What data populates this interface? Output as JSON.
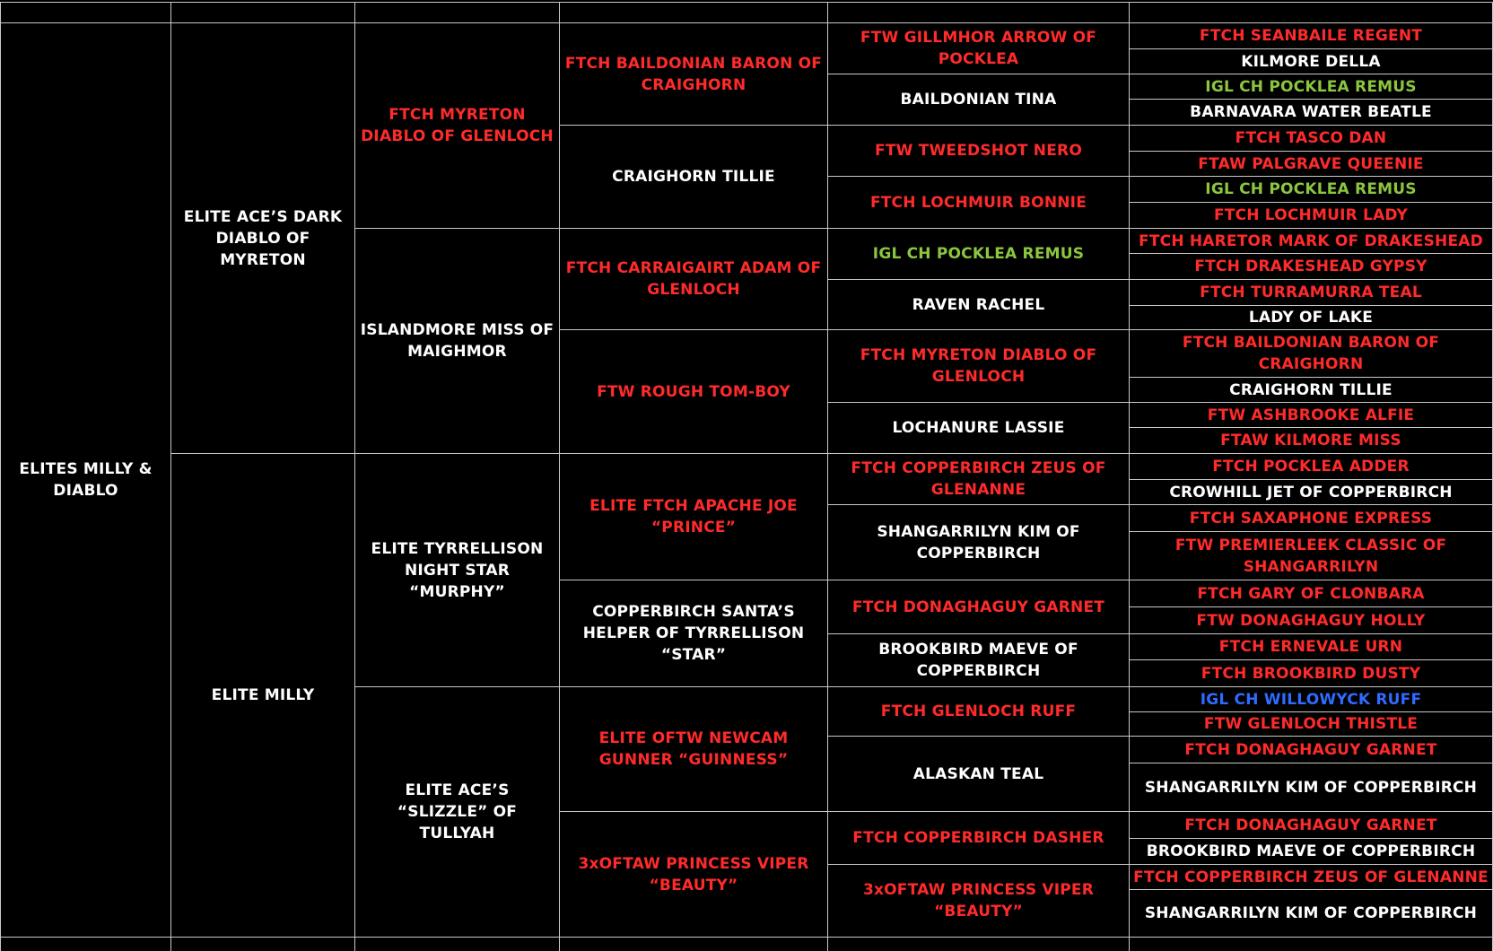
{
  "columns": [
    [
      {
        "text": "ELITES MILLY & DIABLO",
        "color": "#ffffff"
      }
    ],
    [
      {
        "text": "ELITE ACE’S DARK DIABLO OF MYRETON",
        "color": "#ffffff"
      },
      {
        "text": "ELITE MILLY",
        "color": "#ffffff"
      }
    ],
    [
      {
        "text": "FTCH MYRETON DIABLO OF GLENLOCH",
        "color": "#ff2b2b"
      },
      {
        "text": "ISLANDMORE MISS OF MAIGHMOR",
        "color": "#ffffff"
      },
      {
        "text": "ELITE TYRRELLISON NIGHT STAR “MURPHY”",
        "color": "#ffffff"
      },
      {
        "text": "ELITE ACE’S “SLIZZLE” OF TULLYAH",
        "color": "#ffffff"
      }
    ],
    [
      {
        "text": "FTCH BAILDONIAN BARON OF CRAIGHORN",
        "color": "#ff2b2b"
      },
      {
        "text": "CRAIGHORN TILLIE",
        "color": "#ffffff"
      },
      {
        "text": "FTCH CARRAIGAIRT ADAM OF GLENLOCH",
        "color": "#ff2b2b"
      },
      {
        "text": "FTW ROUGH TOM-BOY",
        "color": "#ff2b2b"
      },
      {
        "text": "ELITE FTCH APACHE JOE “PRINCE”",
        "color": "#ff2b2b"
      },
      {
        "text": "COPPERBIRCH SANTA’S HELPER OF TYRRELLISON “STAR”",
        "color": "#ffffff"
      },
      {
        "text": "ELITE OFTW NEWCAM GUNNER “GUINNESS”",
        "color": "#ff2b2b"
      },
      {
        "text": "3xOFTAW PRINCESS VIPER “BEAUTY”",
        "color": "#ff2b2b"
      }
    ],
    [
      {
        "text": "FTW GILLMHOR ARROW OF POCKLEA",
        "color": "#ff2b2b"
      },
      {
        "text": "BAILDONIAN TINA",
        "color": "#ffffff"
      },
      {
        "text": "FTW TWEEDSHOT NERO",
        "color": "#ff2b2b"
      },
      {
        "text": "FTCH LOCHMUIR BONNIE",
        "color": "#ff2b2b"
      },
      {
        "text": "IGL CH POCKLEA REMUS",
        "color": "#8cc63f"
      },
      {
        "text": "RAVEN RACHEL",
        "color": "#ffffff"
      },
      {
        "text": "FTCH MYRETON DIABLO OF GLENLOCH",
        "color": "#ff2b2b"
      },
      {
        "text": "LOCHANURE LASSIE",
        "color": "#ffffff"
      },
      {
        "text": "FTCH COPPERBIRCH ZEUS OF GLENANNE",
        "color": "#ff2b2b"
      },
      {
        "text": "SHANGARRILYN KIM OF COPPERBIRCH",
        "color": "#ffffff"
      },
      {
        "text": "FTCH DONAGHAGUY GARNET",
        "color": "#ff2b2b"
      },
      {
        "text": "BROOKBIRD MAEVE OF COPPERBIRCH",
        "color": "#ffffff"
      },
      {
        "text": "FTCH GLENLOCH RUFF",
        "color": "#ff2b2b"
      },
      {
        "text": "ALASKAN TEAL",
        "color": "#ffffff"
      },
      {
        "text": "FTCH COPPERBIRCH DASHER",
        "color": "#ff2b2b"
      },
      {
        "text": "3xOFTAW PRINCESS VIPER “BEAUTY”",
        "color": "#ff2b2b"
      }
    ],
    [
      {
        "text": "FTCH SEANBAILE REGENT",
        "color": "#ff2b2b"
      },
      {
        "text": "KILMORE DELLA",
        "color": "#ffffff"
      },
      {
        "text": "IGL CH POCKLEA REMUS",
        "color": "#8cc63f"
      },
      {
        "text": "BARNAVARA WATER BEATLE",
        "color": "#ffffff"
      },
      {
        "text": "FTCH TASCO DAN",
        "color": "#ff2b2b"
      },
      {
        "text": "FTAW PALGRAVE QUEENIE",
        "color": "#ff2b2b"
      },
      {
        "text": "IGL CH POCKLEA REMUS",
        "color": "#8cc63f"
      },
      {
        "text": "FTCH LOCHMUIR LADY",
        "color": "#ff2b2b"
      },
      {
        "text": "FTCH HARETOR MARK OF DRAKESHEAD",
        "color": "#ff2b2b"
      },
      {
        "text": "FTCH DRAKESHEAD GYPSY",
        "color": "#ff2b2b"
      },
      {
        "text": "FTCH TURRAMURRA TEAL",
        "color": "#ff2b2b"
      },
      {
        "text": "LADY OF LAKE",
        "color": "#ffffff"
      },
      {
        "text": "FTCH BAILDONIAN BARON OF CRAIGHORN",
        "color": "#ff2b2b"
      },
      {
        "text": "CRAIGHORN TILLIE",
        "color": "#ffffff"
      },
      {
        "text": "FTW ASHBROOKE ALFIE",
        "color": "#ff2b2b"
      },
      {
        "text": "FTAW KILMORE MISS",
        "color": "#ff2b2b"
      },
      {
        "text": "FTCH POCKLEA ADDER",
        "color": "#ff2b2b"
      },
      {
        "text": "CROWHILL JET OF COPPERBIRCH",
        "color": "#ffffff"
      },
      {
        "text": "FTCH SAXAPHONE EXPRESS",
        "color": "#ff2b2b"
      },
      {
        "text": "FTW PREMIERLEEK CLASSIC OF SHANGARRILYN",
        "color": "#ff2b2b"
      },
      {
        "text": "FTCH GARY OF CLONBARA",
        "color": "#ff2b2b"
      },
      {
        "text": "FTW DONAGHAGUY HOLLY",
        "color": "#ff2b2b"
      },
      {
        "text": "FTCH ERNEVALE URN",
        "color": "#ff2b2b"
      },
      {
        "text": "FTCH BROOKBIRD DUSTY",
        "color": "#ff2b2b"
      },
      {
        "text": "IGL CH WILLOWYCK RUFF",
        "color": "#2f6bff"
      },
      {
        "text": "FTW GLENLOCH THISTLE",
        "color": "#ff2b2b"
      },
      {
        "text": "FTCH DONAGHAGUY GARNET",
        "color": "#ff2b2b"
      },
      {
        "text": "SHANGARRILYN KIM OF COPPERBIRCH",
        "color": "#ffffff"
      },
      {
        "text": "FTCH DONAGHAGUY GARNET",
        "color": "#ff2b2b"
      },
      {
        "text": "BROOKBIRD MAEVE OF COPPERBIRCH",
        "color": "#ffffff"
      },
      {
        "text": "FTCH COPPERBIRCH ZEUS OF GLENANNE",
        "color": "#ff2b2b"
      },
      {
        "text": "SHANGARRILYN KIM OF COPPERBIRCH",
        "color": "#ffffff"
      }
    ]
  ]
}
